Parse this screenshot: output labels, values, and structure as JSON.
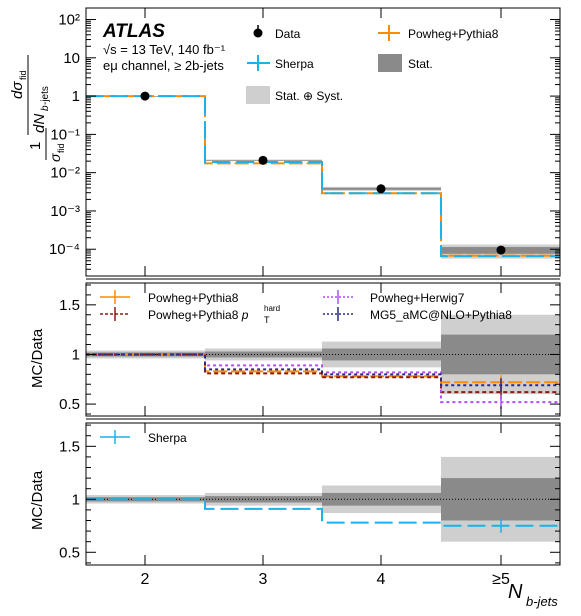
{
  "chart_data": {
    "type": "line",
    "x_categories": [
      "2",
      "3",
      "4",
      "≥5"
    ],
    "xlabel_main": "N",
    "xlabel_sub": "b-jets",
    "experiment": "ATLAS",
    "energy_label": "√s = 13 TeV, 140 fb⁻¹",
    "channel_label": "eμ channel, ≥ 2b-jets",
    "panels": [
      {
        "id": "top",
        "ylabel": "1/σfid dσfid/dNb-jets",
        "yscale": "log",
        "ylim": [
          2e-05,
          200
        ],
        "yticks": [
          "10⁻⁴",
          "10⁻³",
          "10⁻²",
          "10⁻¹",
          "1",
          "10",
          "10²"
        ],
        "data": {
          "name": "Data",
          "values": [
            1.0,
            0.021,
            0.0038,
            9.5e-05
          ]
        },
        "stat_band": {
          "name": "Stat.",
          "rel_unc": [
            0.003,
            0.02,
            0.06,
            0.2
          ]
        },
        "syst_band": {
          "name": "Stat. ⊕ Syst.",
          "rel_unc": [
            0.006,
            0.05,
            0.12,
            0.4
          ]
        },
        "series": [
          {
            "name": "Powheg+Pythia8",
            "color": "#ff8c00",
            "values": [
              1.0,
              0.0175,
              0.0029,
              6.8e-05
            ]
          },
          {
            "name": "Sherpa",
            "color": "#1ab2e8",
            "values": [
              1.0,
              0.019,
              0.0029,
              6.6e-05
            ]
          }
        ]
      },
      {
        "id": "ratio1",
        "ylabel": "MC/Data",
        "ylim": [
          0.38,
          1.72
        ],
        "yticks": [
          "0.5",
          "1",
          "1.5"
        ],
        "stat_band": [
          0.02,
          0.03,
          0.06,
          0.2
        ],
        "syst_band": [
          0.04,
          0.06,
          0.13,
          0.4
        ],
        "series": [
          {
            "name": "Powheg+Pythia8",
            "color": "#ff8c00",
            "values": [
              1.0,
              0.83,
              0.78,
              0.72
            ]
          },
          {
            "name": "Powheg+Pythia8 p_T^hard",
            "color": "#8b1a10",
            "values": [
              1.0,
              0.81,
              0.77,
              0.62
            ]
          },
          {
            "name": "Powheg+Herwig7",
            "color": "#b34dff",
            "values": [
              1.0,
              0.89,
              0.82,
              0.52
            ]
          },
          {
            "name": "MG5_aMC@NLO+Pythia8",
            "color": "#2b2a80",
            "values": [
              1.0,
              0.85,
              0.8,
              0.69
            ]
          }
        ]
      },
      {
        "id": "ratio2",
        "ylabel": "MC/Data",
        "ylim": [
          0.38,
          1.72
        ],
        "yticks": [
          "0.5",
          "1",
          "1.5"
        ],
        "stat_band": [
          0.02,
          0.03,
          0.06,
          0.2
        ],
        "syst_band": [
          0.04,
          0.06,
          0.13,
          0.4
        ],
        "series": [
          {
            "name": "Sherpa",
            "color": "#1ab2e8",
            "values": [
              1.0,
              0.91,
              0.78,
              0.75
            ]
          }
        ]
      }
    ]
  }
}
